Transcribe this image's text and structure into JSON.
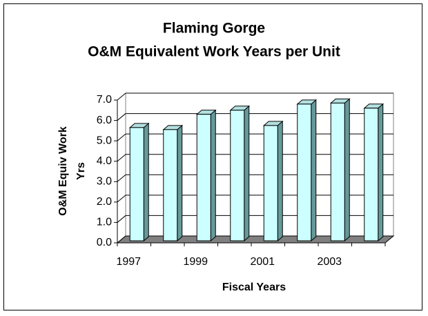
{
  "chart_data": {
    "type": "bar",
    "title": [
      "Flaming Gorge",
      "O&M Equivalent Work Years per Unit"
    ],
    "x_label": "Fiscal Years",
    "y_label": [
      "O&M Equiv Work",
      "Yrs"
    ],
    "categories": [
      "1997",
      null,
      "1999",
      null,
      "2001",
      null,
      "2003",
      null
    ],
    "values": [
      5.55,
      5.45,
      6.2,
      6.4,
      5.65,
      6.7,
      6.75,
      6.5
    ],
    "color": "#ccffff",
    "ylim": [
      0,
      7
    ],
    "yticks": [
      {
        "value": 0,
        "label": "0.0"
      },
      {
        "value": 1,
        "label": "1.0"
      },
      {
        "value": 2,
        "label": "2.0"
      },
      {
        "value": 3,
        "label": "3.0"
      },
      {
        "value": 4,
        "label": "4.0"
      },
      {
        "value": 5,
        "label": "5.0"
      },
      {
        "value": 6,
        "label": "6.0"
      },
      {
        "value": 7,
        "label": "7.0"
      }
    ],
    "grid": true
  }
}
